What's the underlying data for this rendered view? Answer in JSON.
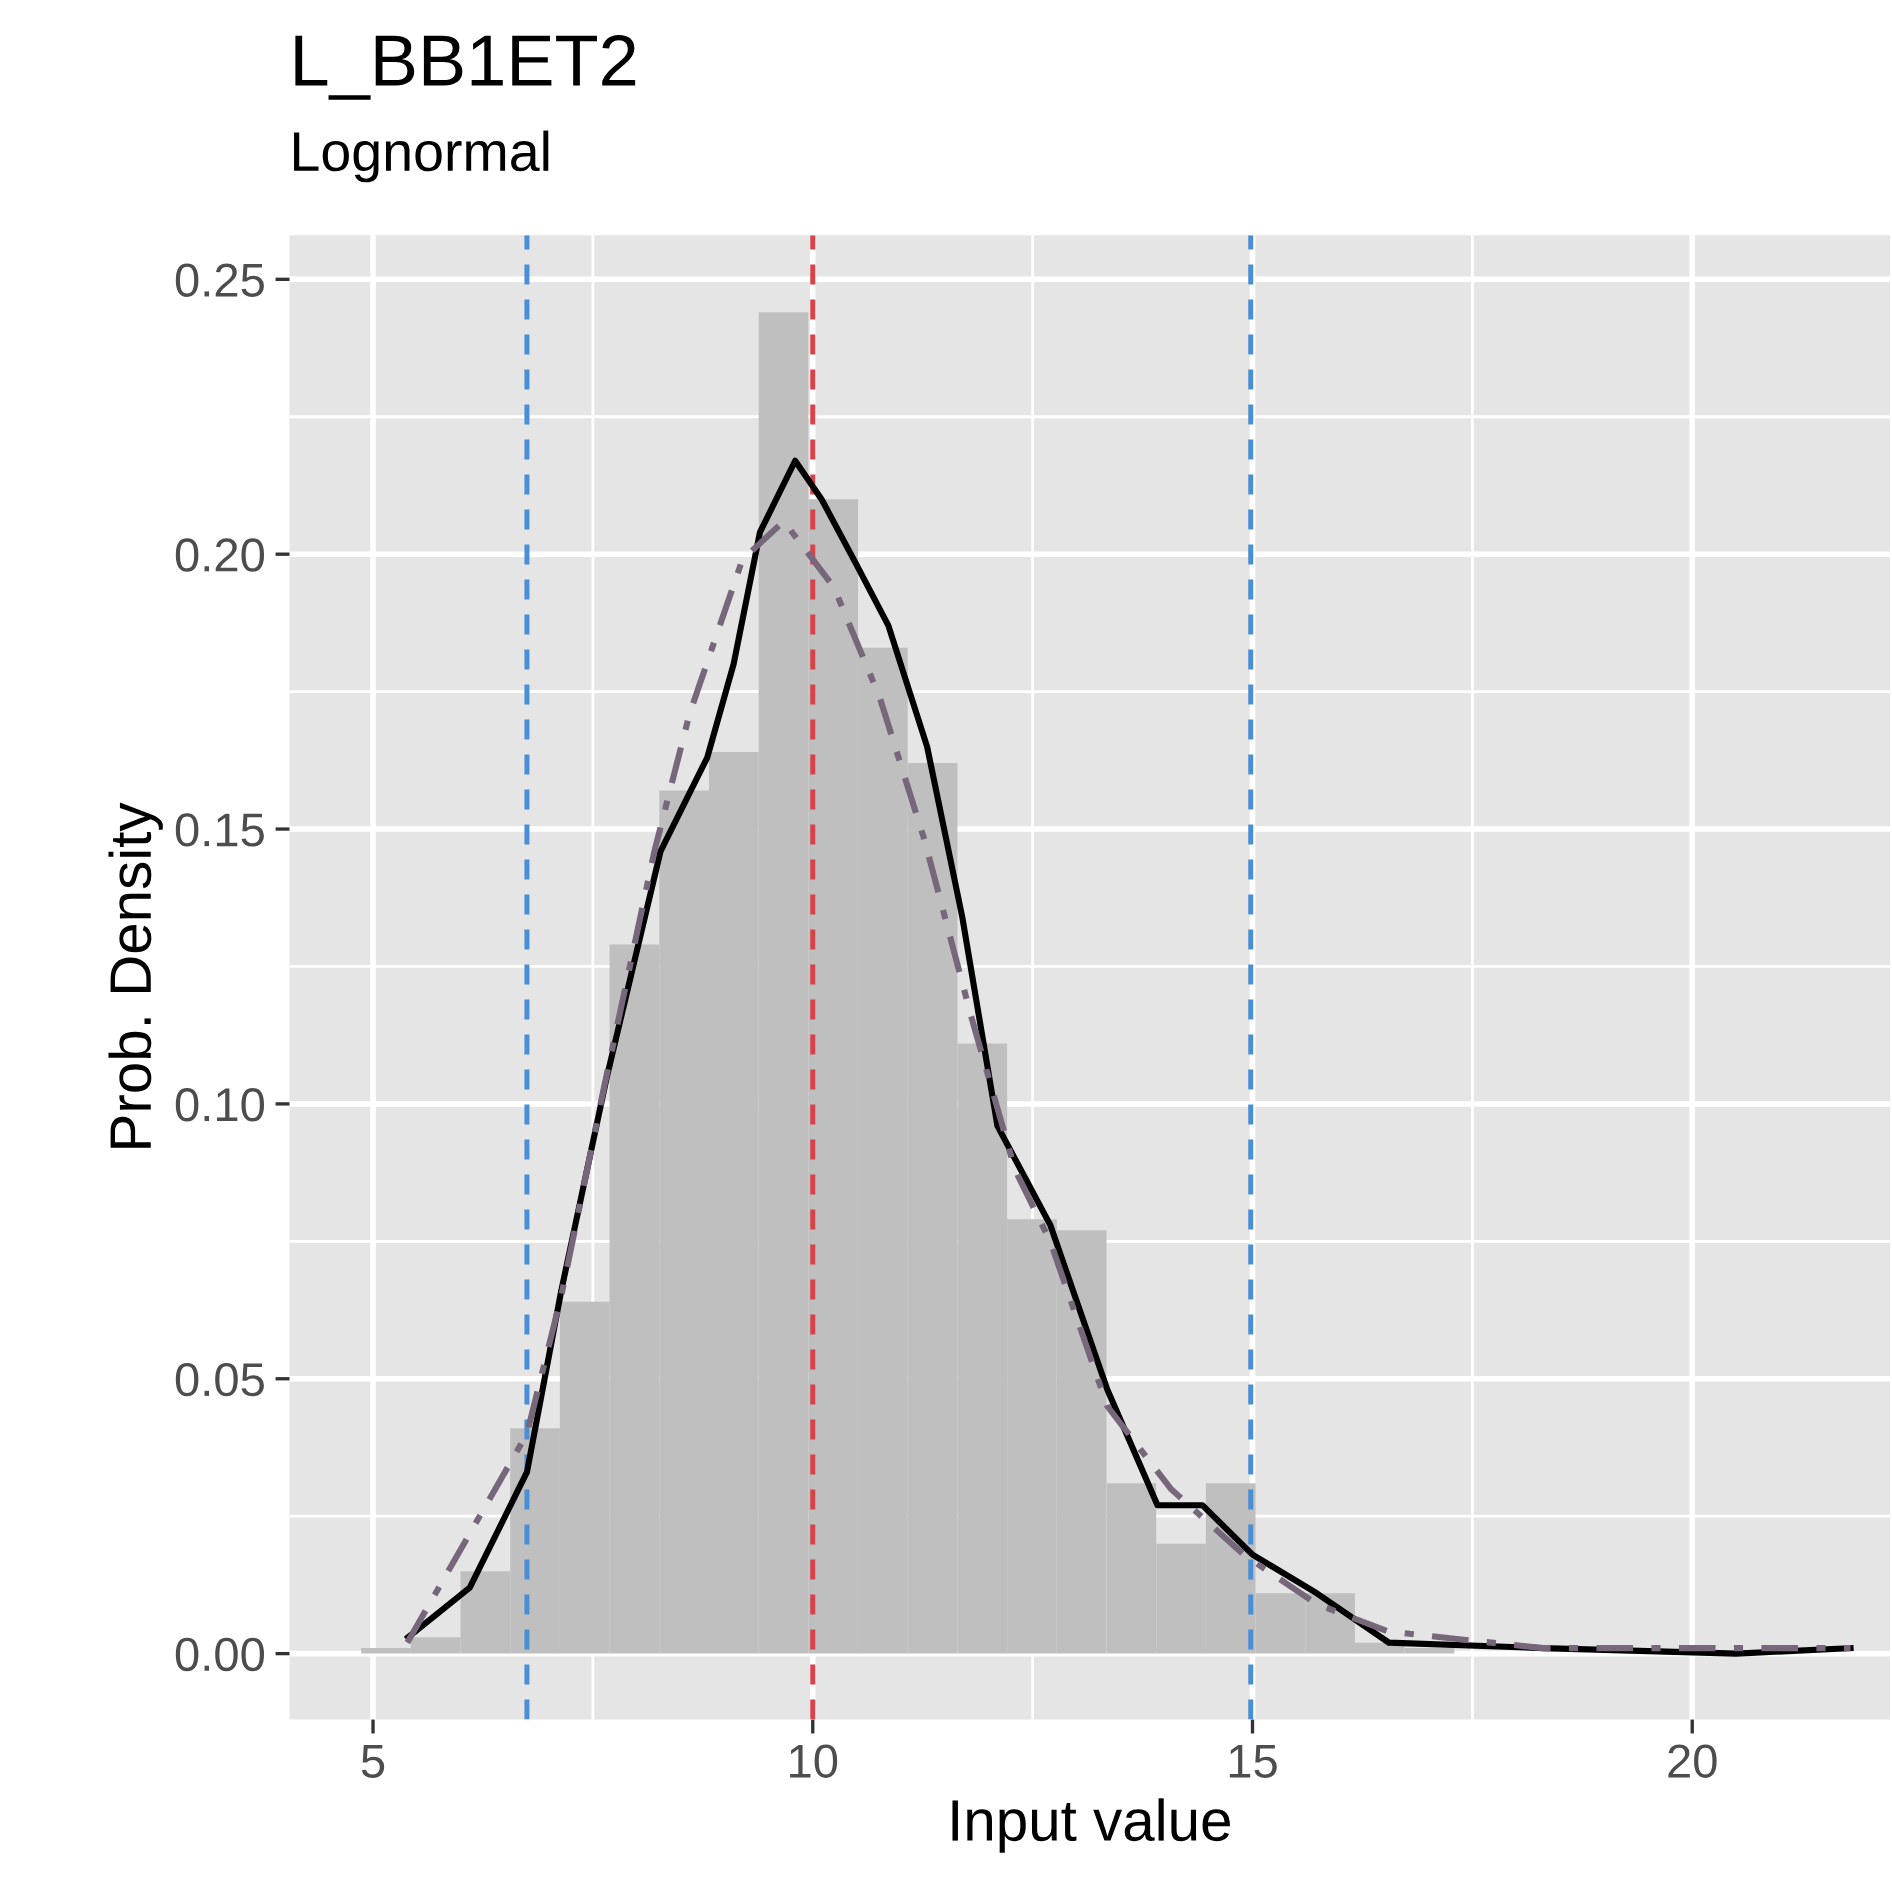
{
  "chart_data": {
    "type": "histogram",
    "title": "L_BB1ET2",
    "subtitle": "Lognormal",
    "xlabel": "Input value",
    "ylabel": "Prob. Density",
    "xlim": [
      4.05,
      22.25
    ],
    "ylim": [
      -0.012,
      0.258
    ],
    "xticks": [
      5,
      10,
      15,
      20
    ],
    "yticks": [
      {
        "value": 0,
        "label": "0.00"
      },
      {
        "value": 0.05,
        "label": "0.05"
      },
      {
        "value": 0.1,
        "label": "0.10"
      },
      {
        "value": 0.15,
        "label": "0.15"
      },
      {
        "value": 0.2,
        "label": "0.20"
      },
      {
        "value": 0.25,
        "label": "0.25"
      }
    ],
    "grid": true,
    "series": [
      {
        "color": "#bfbfbf",
        "bins": [
          4.865,
          5.43,
          5.995,
          6.56,
          7.125,
          7.69,
          8.255,
          8.82,
          9.385,
          9.95,
          10.515,
          11.08,
          11.645,
          12.21,
          12.775,
          13.34,
          13.905,
          14.47,
          15.035,
          15.6,
          16.165,
          16.73,
          17.295,
          17.86,
          18.425,
          18.99,
          19.555,
          20.12,
          20.685,
          21.25,
          21.815
        ],
        "values": [
          0.001,
          0.003,
          0.015,
          0.041,
          0.064,
          0.129,
          0.157,
          0.164,
          0.244,
          0.21,
          0.183,
          0.162,
          0.111,
          0.079,
          0.077,
          0.031,
          0.02,
          0.031,
          0.011,
          0.011,
          0.002,
          0.001,
          0,
          0,
          0,
          0,
          0,
          0,
          0,
          0
        ]
      },
      {
        "type": "line",
        "color": "#000000",
        "line_style": "solid",
        "x": [
          5.4,
          6.1,
          6.75,
          7.14,
          7.66,
          8.27,
          8.8,
          9.1,
          9.4,
          9.8,
          10.1,
          10.5,
          10.86,
          11.3,
          11.7,
          12.1,
          12.7,
          13.35,
          13.92,
          14.43,
          15.0,
          15.73,
          16.55,
          18.3,
          20.5,
          21.8
        ],
        "values": [
          0.003,
          0.012,
          0.033,
          0.066,
          0.105,
          0.146,
          0.163,
          0.18,
          0.204,
          0.217,
          0.21,
          0.198,
          0.187,
          0.165,
          0.134,
          0.096,
          0.078,
          0.048,
          0.027,
          0.027,
          0.018,
          0.011,
          0.002,
          0.001,
          0,
          0.001
        ]
      },
      {
        "type": "line",
        "color": "#76677a",
        "line_style": "dashdot",
        "x": [
          5.39,
          6.75,
          7.14,
          7.6,
          8.2,
          8.6,
          9.2,
          9.67,
          10.24,
          10.76,
          11.27,
          11.8,
          12.3,
          12.7,
          13.35,
          14.07,
          14.9,
          15.73,
          16.55,
          18.3,
          21.8
        ],
        "values": [
          0.002,
          0.04,
          0.065,
          0.101,
          0.146,
          0.171,
          0.199,
          0.206,
          0.194,
          0.174,
          0.148,
          0.116,
          0.088,
          0.075,
          0.045,
          0.03,
          0.018,
          0.009,
          0.004,
          0.001,
          0.001
        ]
      }
    ],
    "ref_lines": [
      {
        "axis": "x",
        "value": 6.75,
        "color": "#4a8fd6",
        "line_style": "dashed"
      },
      {
        "axis": "x",
        "value": 10.0,
        "color": "#d6434b",
        "line_style": "dashed"
      },
      {
        "axis": "x",
        "value": 14.98,
        "color": "#4a8fd6",
        "line_style": "dashed"
      }
    ]
  }
}
